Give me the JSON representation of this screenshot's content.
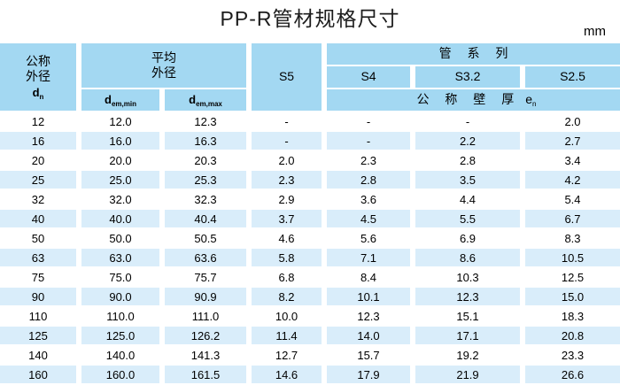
{
  "title": "PP-R管材规格尺寸",
  "unit": "mm",
  "colors": {
    "header_blue": "#a3d8f2",
    "row_stripe_blue": "#d9edfa",
    "row_white": "#ffffff",
    "text": "#000000"
  },
  "table": {
    "headers": {
      "nominal_od": {
        "line1": "公称",
        "line2": "外径",
        "symbol": "d",
        "sub": "n"
      },
      "avg_od": {
        "line1": "平均",
        "line2": "外径"
      },
      "dem_min": {
        "symbol": "d",
        "sub": "em,min"
      },
      "dem_max": {
        "symbol": "d",
        "sub": "em,max"
      },
      "s5": "S5",
      "pipe_series": "管 系 列",
      "s4": "S4",
      "s3_2": "S3.2",
      "s2_5": "S2.5",
      "wall_thickness": {
        "text": "公 称 壁 厚",
        "symbol": "e",
        "sub": "n"
      }
    },
    "rows": [
      [
        "12",
        "12.0",
        "12.3",
        "-",
        "-",
        "-",
        "2.0"
      ],
      [
        "16",
        "16.0",
        "16.3",
        "-",
        "-",
        "2.2",
        "2.7"
      ],
      [
        "20",
        "20.0",
        "20.3",
        "2.0",
        "2.3",
        "2.8",
        "3.4"
      ],
      [
        "25",
        "25.0",
        "25.3",
        "2.3",
        "2.8",
        "3.5",
        "4.2"
      ],
      [
        "32",
        "32.0",
        "32.3",
        "2.9",
        "3.6",
        "4.4",
        "5.4"
      ],
      [
        "40",
        "40.0",
        "40.4",
        "3.7",
        "4.5",
        "5.5",
        "6.7"
      ],
      [
        "50",
        "50.0",
        "50.5",
        "4.6",
        "5.6",
        "6.9",
        "8.3"
      ],
      [
        "63",
        "63.0",
        "63.6",
        "5.8",
        "7.1",
        "8.6",
        "10.5"
      ],
      [
        "75",
        "75.0",
        "75.7",
        "6.8",
        "8.4",
        "10.3",
        "12.5"
      ],
      [
        "90",
        "90.0",
        "90.9",
        "8.2",
        "10.1",
        "12.3",
        "15.0"
      ],
      [
        "110",
        "110.0",
        "111.0",
        "10.0",
        "12.3",
        "15.1",
        "18.3"
      ],
      [
        "125",
        "125.0",
        "126.2",
        "11.4",
        "14.0",
        "17.1",
        "20.8"
      ],
      [
        "140",
        "140.0",
        "141.3",
        "12.7",
        "15.7",
        "19.2",
        "23.3"
      ],
      [
        "160",
        "160.0",
        "161.5",
        "14.6",
        "17.9",
        "21.9",
        "26.6"
      ]
    ]
  }
}
